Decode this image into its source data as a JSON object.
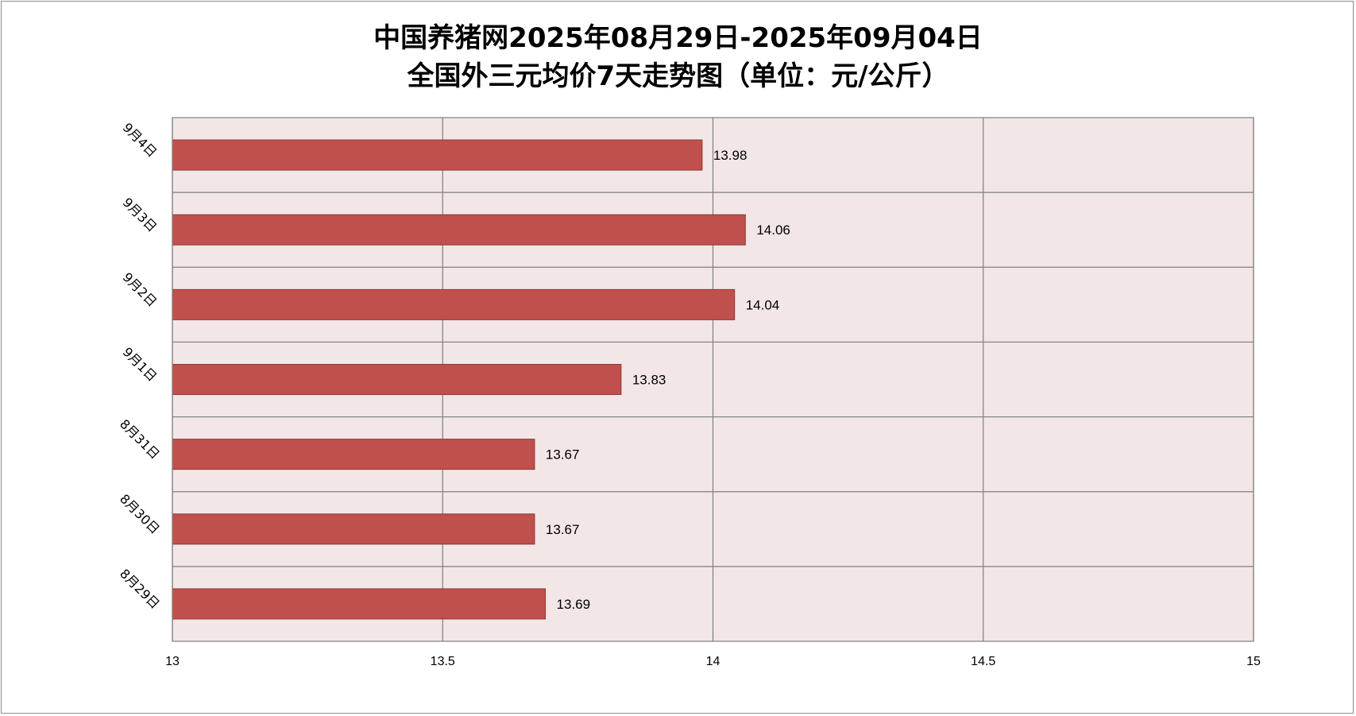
{
  "chart_data": {
    "type": "bar",
    "orientation": "horizontal",
    "title": "中国养猪网2025年08月29日-2025年09月04日",
    "subtitle": "全国外三元均价7天走势图（单位：元/公斤）",
    "categories": [
      "9月4日",
      "9月3日",
      "9月2日",
      "9月1日",
      "8月31日",
      "8月30日",
      "8月29日"
    ],
    "values": [
      13.98,
      14.06,
      14.04,
      13.83,
      13.67,
      13.67,
      13.69
    ],
    "data_labels": [
      "13.98",
      "14.06",
      "14.04",
      "13.83",
      "13.67",
      "13.67",
      "13.69"
    ],
    "xlim": [
      13,
      15
    ],
    "xticks": [
      13,
      13.5,
      14,
      14.5,
      15
    ],
    "xtick_labels": [
      "13",
      "13.5",
      "14",
      "14.5",
      "15"
    ],
    "grid": true,
    "legend": "none",
    "xlabel": "",
    "ylabel": ""
  },
  "colors": {
    "bar_fill": "#c0504d",
    "bar_stroke": "#8c3836",
    "plot_background": "#f2e6e6",
    "grid": "#7f7f7f"
  }
}
